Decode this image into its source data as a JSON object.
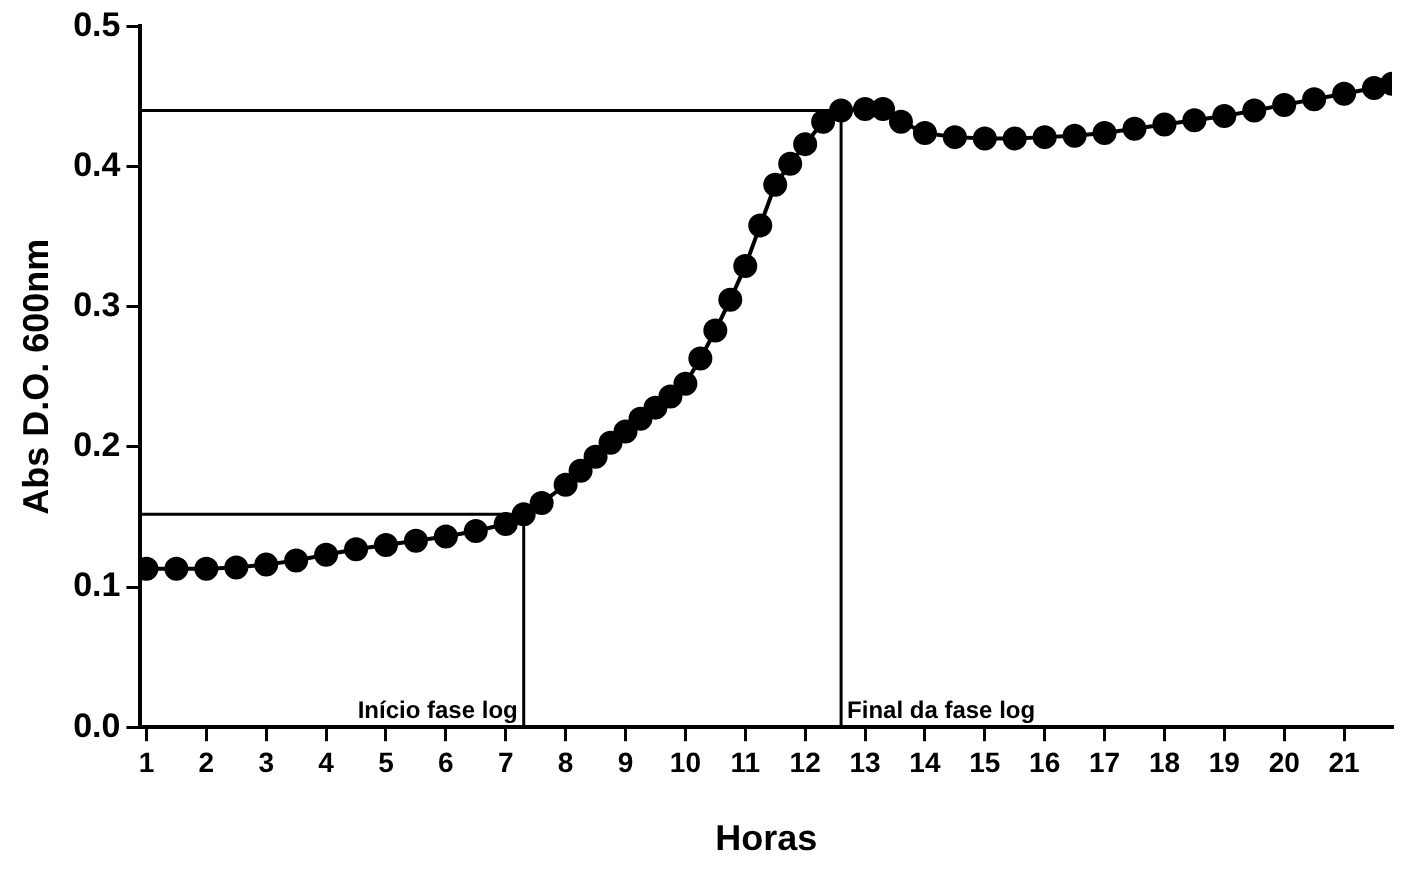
{
  "chart_data": {
    "type": "line",
    "xlabel": "Horas",
    "ylabel": "Abs D.O. 600nm",
    "xlim": [
      0.9,
      21.8
    ],
    "xticks": [
      1,
      2,
      3,
      4,
      5,
      6,
      7,
      8,
      9,
      10,
      11,
      12,
      13,
      14,
      15,
      16,
      17,
      18,
      19,
      20,
      21
    ],
    "ylim": [
      0,
      0.5
    ],
    "yticks": [
      {
        "value": 0,
        "label": "0.0"
      },
      0.1,
      0.2,
      0.3,
      0.4,
      0.5
    ],
    "grid": false,
    "legend": false,
    "marker": "circle",
    "line_style": "solid",
    "series": [
      {
        "color": "#000000",
        "x": [
          1,
          1.5,
          2,
          2.5,
          3,
          3.5,
          4,
          4.5,
          5,
          5.5,
          6,
          6.5,
          7,
          7.3,
          7.6,
          8,
          8.25,
          8.5,
          8.75,
          9,
          9.25,
          9.5,
          9.75,
          10,
          10.25,
          10.5,
          10.75,
          11,
          11.25,
          11.5,
          11.75,
          12,
          12.3,
          12.6,
          13,
          13.3,
          13.6,
          14,
          14.5,
          15,
          15.5,
          16,
          16.5,
          17,
          17.5,
          18,
          18.5,
          19,
          19.5,
          20,
          20.5,
          21,
          21.5,
          21.8
        ],
        "values": [
          0.113,
          0.113,
          0.113,
          0.114,
          0.116,
          0.119,
          0.123,
          0.127,
          0.13,
          0.133,
          0.136,
          0.14,
          0.145,
          0.152,
          0.16,
          0.173,
          0.183,
          0.193,
          0.203,
          0.211,
          0.22,
          0.228,
          0.236,
          0.245,
          0.263,
          0.283,
          0.305,
          0.329,
          0.358,
          0.387,
          0.402,
          0.416,
          0.432,
          0.44,
          0.441,
          0.441,
          0.432,
          0.424,
          0.421,
          0.42,
          0.42,
          0.421,
          0.422,
          0.424,
          0.427,
          0.43,
          0.433,
          0.436,
          0.44,
          0.444,
          0.448,
          0.452,
          0.456,
          0.459
        ]
      }
    ],
    "ref_lines": [
      {
        "axis": "x",
        "value": 7.3,
        "label": "Início fase log"
      },
      {
        "axis": "y",
        "value": 0.152
      },
      {
        "axis": "x",
        "value": 12.6,
        "label": "Final da fase log"
      },
      {
        "axis": "y",
        "value": 0.44
      }
    ]
  }
}
